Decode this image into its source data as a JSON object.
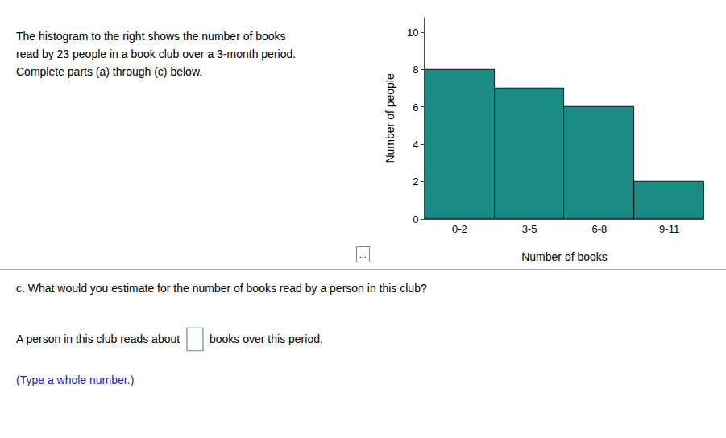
{
  "chart_data": {
    "type": "bar",
    "categories": [
      "0-2",
      "3-5",
      "6-8",
      "9-11"
    ],
    "values": [
      8,
      7,
      6,
      2
    ],
    "color": "#1a8a84",
    "xlabel": "Number of books",
    "ylabel": "Number of people",
    "ylim": [
      0,
      10.8
    ],
    "yticks": [
      0,
      2,
      4,
      6,
      8,
      10
    ],
    "grid": false,
    "annotations": [
      "The histogram to the right shows the number of books",
      "read by 23 people in a book club over a 3-month period.",
      "Complete parts (a) through (c) below.",
      "...",
      "c. What would you estimate for the number of books read by a person in this club?",
      "A person in this club reads about",
      "books over this period.",
      "(Type a whole number.)"
    ]
  }
}
